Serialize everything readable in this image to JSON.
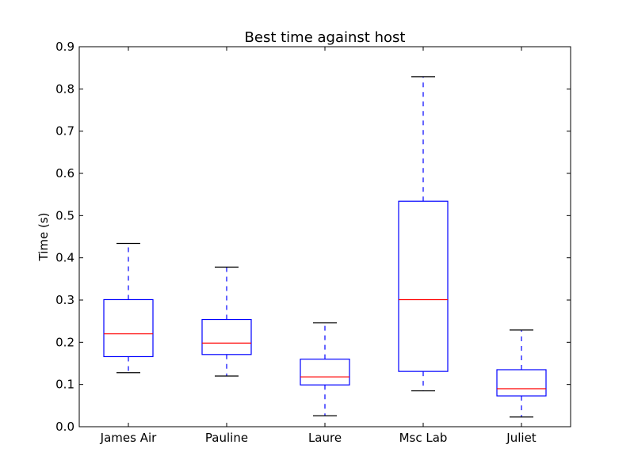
{
  "chart_data": {
    "type": "boxplot",
    "title": "Best time against host",
    "xlabel": "",
    "ylabel": "Time (s)",
    "ylim": [
      0.0,
      0.9
    ],
    "yticks": [
      "0.0",
      "0.1",
      "0.2",
      "0.3",
      "0.4",
      "0.5",
      "0.6",
      "0.7",
      "0.8",
      "0.9"
    ],
    "categories": [
      "James Air",
      "Pauline",
      "Laure",
      "Msc Lab",
      "Juliet"
    ],
    "boxes": [
      {
        "label": "James Air",
        "whisker_low": 0.128,
        "q1": 0.166,
        "median": 0.22,
        "q3": 0.301,
        "whisker_high": 0.434
      },
      {
        "label": "Pauline",
        "whisker_low": 0.12,
        "q1": 0.171,
        "median": 0.198,
        "q3": 0.254,
        "whisker_high": 0.378
      },
      {
        "label": "Laure",
        "whisker_low": 0.026,
        "q1": 0.099,
        "median": 0.118,
        "q3": 0.16,
        "whisker_high": 0.246
      },
      {
        "label": "Msc Lab",
        "whisker_low": 0.085,
        "q1": 0.131,
        "median": 0.301,
        "q3": 0.534,
        "whisker_high": 0.829
      },
      {
        "label": "Juliet",
        "whisker_low": 0.023,
        "q1": 0.073,
        "median": 0.09,
        "q3": 0.135,
        "whisker_high": 0.229
      }
    ],
    "grid": false,
    "legend": "none",
    "colors": {
      "box": "#0000ff",
      "median": "#ff0000",
      "cap": "#000000",
      "axis": "#000000"
    }
  }
}
